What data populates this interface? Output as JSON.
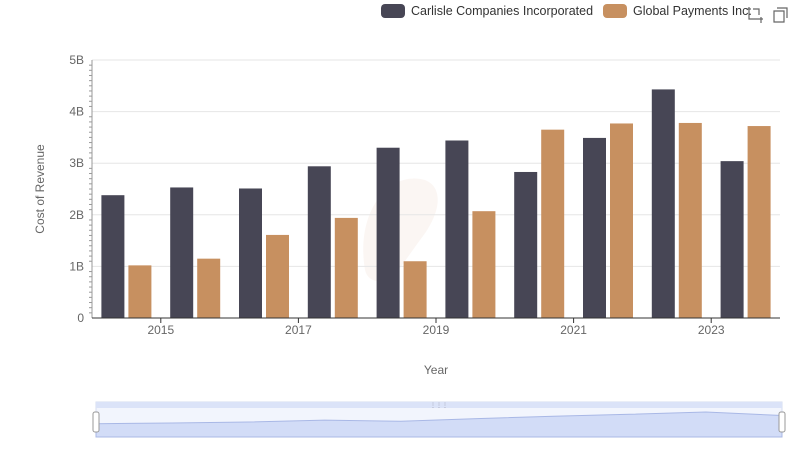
{
  "legend": {
    "items": [
      {
        "label": "Carlisle Companies Incorporated",
        "color": "#474655"
      },
      {
        "label": "Global Payments Inc.",
        "color": "#c79060"
      }
    ]
  },
  "toolbox": {
    "icons": [
      "zoom-icon",
      "restore-icon"
    ]
  },
  "chart_data": {
    "type": "bar",
    "xlabel": "Year",
    "ylabel": "Cost of Revenue",
    "x": [
      2014,
      2015,
      2016,
      2017,
      2018,
      2019,
      2020,
      2021,
      2022,
      2023
    ],
    "x_tick_labels": [
      "2015",
      "2017",
      "2019",
      "2021",
      "2023"
    ],
    "x_tick_years": [
      2015,
      2017,
      2019,
      2021,
      2023
    ],
    "y_tick_labels": [
      "0",
      "1B",
      "2B",
      "3B",
      "4B",
      "5B"
    ],
    "y_ticks": [
      0,
      1000000000,
      2000000000,
      3000000000,
      4000000000,
      5000000000
    ],
    "ylim": [
      0,
      5000000000
    ],
    "grid": true,
    "legend_position": "top-right",
    "series": [
      {
        "name": "Carlisle Companies Incorporated",
        "color": "#474655",
        "values": [
          2380000000,
          2530000000,
          2510000000,
          2940000000,
          3300000000,
          3440000000,
          2830000000,
          3490000000,
          4430000000,
          3040000000
        ]
      },
      {
        "name": "Global Payments Inc.",
        "color": "#c79060",
        "values": [
          1020000000,
          1150000000,
          1610000000,
          1940000000,
          1100000000,
          2070000000,
          3650000000,
          3770000000,
          3780000000,
          3720000000
        ]
      }
    ]
  },
  "datazoom": {
    "range": [
      0,
      100
    ],
    "handle_color": "#ccd5f0"
  }
}
